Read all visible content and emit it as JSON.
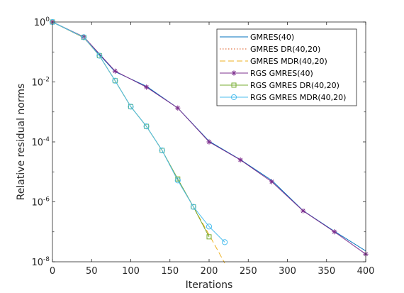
{
  "chart_data": {
    "type": "line",
    "title": "",
    "xlabel": "Iterations",
    "ylabel": "Relative residual norms",
    "xlim": [
      0,
      400
    ],
    "ylim_log10": [
      -8,
      0
    ],
    "y_scale": "log",
    "x_ticks": [
      0,
      50,
      100,
      150,
      200,
      250,
      300,
      350,
      400
    ],
    "y_ticks": [
      {
        "exp": 0,
        "base": "10",
        "sup": "0"
      },
      {
        "exp": -2,
        "base": "10",
        "sup": "-2"
      },
      {
        "exp": -4,
        "base": "10",
        "sup": "-4"
      },
      {
        "exp": -6,
        "base": "10",
        "sup": "-6"
      },
      {
        "exp": -8,
        "base": "10",
        "sup": "-8"
      }
    ],
    "legend_position": "top-right",
    "series": [
      {
        "name": "GMRES(40)",
        "color": "#0072BD",
        "dash": "",
        "marker": "none",
        "x": [
          0,
          40,
          80,
          120,
          160,
          200,
          240,
          280,
          320,
          360,
          400
        ],
        "y": [
          1.0,
          0.3,
          0.022,
          0.0072,
          0.00135,
          0.000105,
          2.55e-05,
          5.2e-06,
          5.1e-07,
          1.04e-07,
          2.3e-08
        ]
      },
      {
        "name": "GMRES DR(40,20)",
        "color": "#D95319",
        "dash": "1.5,2.5",
        "marker": "none",
        "x": [
          0,
          40,
          60,
          80,
          100,
          120,
          140,
          160,
          180,
          200
        ],
        "y": [
          1.0,
          0.3,
          0.075,
          0.011,
          0.0015,
          0.00033,
          5.2e-05,
          5.8e-06,
          6.8e-07,
          6.8e-08
        ]
      },
      {
        "name": "GMRES MDR(40,20)",
        "color": "#EDB120",
        "dash": "8,4",
        "marker": "none",
        "x": [
          0,
          40,
          60,
          80,
          100,
          120,
          140,
          160,
          180,
          200,
          220
        ],
        "y": [
          1.0,
          0.3,
          0.075,
          0.011,
          0.0015,
          0.00033,
          5.2e-05,
          5.2e-06,
          6.8e-07,
          8e-08,
          9e-09
        ]
      },
      {
        "name": "RGS GMRES(40)",
        "color": "#7E2F8E",
        "dash": "",
        "marker": "star",
        "x": [
          0,
          40,
          80,
          120,
          160,
          200,
          240,
          280,
          320,
          360,
          400
        ],
        "y": [
          1.0,
          0.32,
          0.023,
          0.0067,
          0.00135,
          0.0001,
          2.5e-05,
          4.7e-06,
          5e-07,
          1e-07,
          1.8e-08
        ]
      },
      {
        "name": "RGS GMRES DR(40,20)",
        "color": "#77AC30",
        "dash": "",
        "marker": "square",
        "x": [
          0,
          40,
          60,
          80,
          100,
          120,
          140,
          160,
          180,
          200
        ],
        "y": [
          1.0,
          0.31,
          0.075,
          0.011,
          0.0015,
          0.00033,
          5.2e-05,
          5.8e-06,
          6.8e-07,
          6.8e-08
        ]
      },
      {
        "name": "RGS GMRES MDR(40,20)",
        "color": "#4DBEEE",
        "dash": "",
        "marker": "circle",
        "x": [
          0,
          40,
          60,
          80,
          100,
          120,
          140,
          160,
          180,
          200,
          220
        ],
        "y": [
          1.0,
          0.31,
          0.075,
          0.011,
          0.0015,
          0.00033,
          5.2e-05,
          5.2e-06,
          6.8e-07,
          1.5e-07,
          4.5e-08
        ]
      }
    ]
  }
}
